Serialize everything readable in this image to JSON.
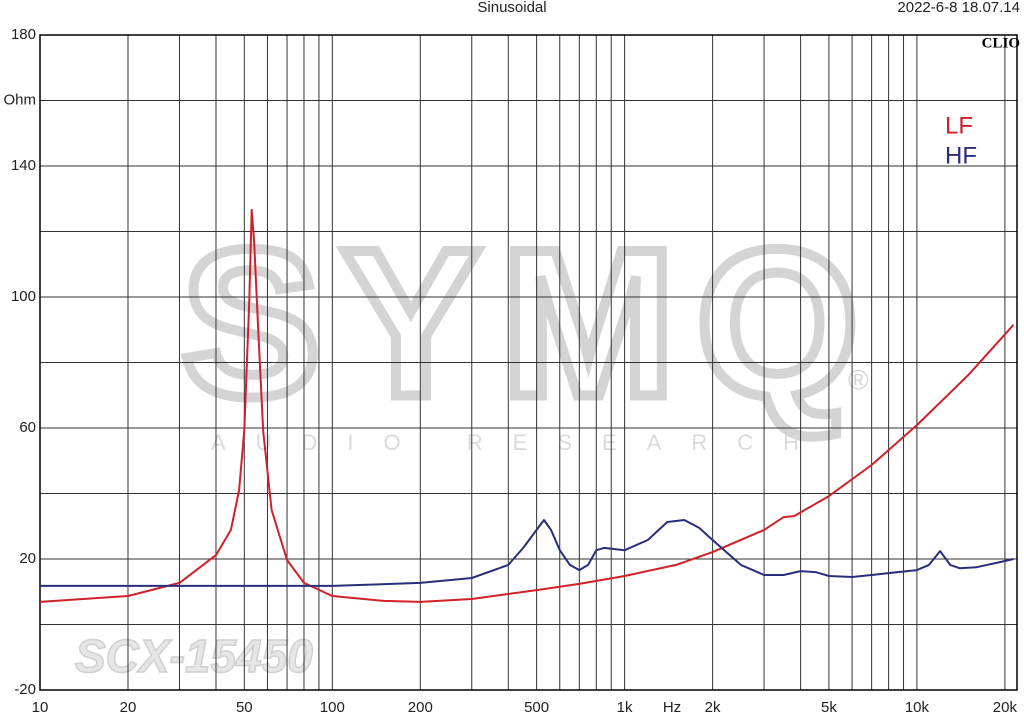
{
  "chart_data": {
    "type": "line",
    "title": "Sinusoidal",
    "timestamp": "2022-6-8 18.07.14",
    "brand": "CLIO",
    "watermark": {
      "logo": "SYMQ",
      "registered": "®",
      "tagline": "AUDIO RESEARCH",
      "model": "SCX-15450"
    },
    "x_label": "Hz",
    "log_x": true,
    "legend": "upper right",
    "xlim": [
      10,
      22000
    ],
    "ylim": [
      -20,
      180
    ],
    "xticks": [
      10,
      20,
      50,
      100,
      200,
      500,
      {
        "value": 1000,
        "label": "1k"
      },
      {
        "value": 2000,
        "label": "2k"
      },
      {
        "value": 5000,
        "label": "5k"
      },
      {
        "value": 10000,
        "label": "10k"
      },
      {
        "value": 20000,
        "label": "20k"
      }
    ],
    "xgrid": [
      10,
      20,
      30,
      40,
      50,
      60,
      70,
      80,
      90,
      100,
      200,
      300,
      400,
      500,
      600,
      700,
      800,
      900,
      1000,
      2000,
      3000,
      4000,
      5000,
      6000,
      7000,
      8000,
      9000,
      10000,
      20000
    ],
    "yticks": [
      180,
      {
        "value": 160,
        "label": "Ohm"
      },
      140,
      100,
      60,
      20,
      -20
    ],
    "ygrid": [
      180,
      160,
      140,
      120,
      100,
      80,
      60,
      40,
      20,
      0,
      -20
    ],
    "series": [
      {
        "name": "LF",
        "color": "#d0202a",
        "x": [
          10,
          20,
          30,
          40,
          45,
          48,
          50,
          52,
          53,
          54,
          56,
          58,
          62,
          70,
          80,
          100,
          150,
          200,
          300,
          500,
          700,
          1000,
          1500,
          2000,
          3000,
          3500,
          3800,
          5000,
          7000,
          10000,
          15000,
          21400
        ],
        "values": [
          6.9,
          8.7,
          12.7,
          21.2,
          28.9,
          41,
          59.4,
          99,
          126.6,
          117,
          86.9,
          59,
          35,
          19.7,
          12.7,
          8.7,
          7.2,
          6.9,
          7.8,
          10.5,
          12.4,
          14.8,
          18.2,
          22.1,
          28.9,
          32.8,
          33.1,
          39.2,
          48.7,
          60.9,
          76.2,
          91.5
        ]
      },
      {
        "name": "HF",
        "color": "#2a2e7a",
        "x": [
          10,
          50,
          100,
          200,
          300,
          400,
          450,
          500,
          530,
          560,
          600,
          650,
          700,
          750,
          800,
          850,
          1000,
          1200,
          1400,
          1600,
          1800,
          2000,
          2500,
          3000,
          3500,
          4000,
          4500,
          5000,
          6000,
          7000,
          8000,
          10000,
          11000,
          12000,
          13000,
          14000,
          16000,
          20000,
          21400
        ],
        "values": [
          11.8,
          11.8,
          11.8,
          12.7,
          14.2,
          18.2,
          23.4,
          28.9,
          31.9,
          28.9,
          22.7,
          18.2,
          16.6,
          18.2,
          22.7,
          23.4,
          22.7,
          25.8,
          31.3,
          31.9,
          29.5,
          25.8,
          18.2,
          15.1,
          15.1,
          16.3,
          16,
          14.8,
          14.5,
          15.1,
          15.7,
          16.6,
          18.2,
          22.4,
          18.2,
          17.2,
          17.5,
          19.4,
          20
        ]
      }
    ]
  }
}
